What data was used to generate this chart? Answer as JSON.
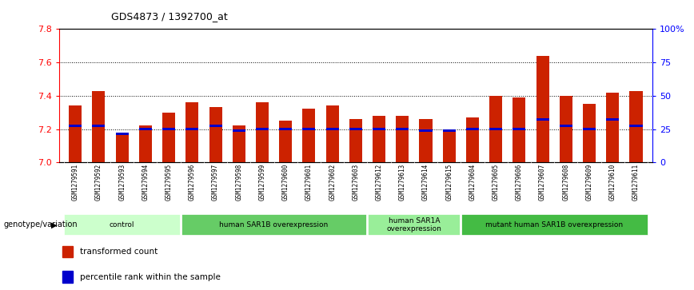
{
  "title": "GDS4873 / 1392700_at",
  "samples": [
    "GSM1279591",
    "GSM1279592",
    "GSM1279593",
    "GSM1279594",
    "GSM1279595",
    "GSM1279596",
    "GSM1279597",
    "GSM1279598",
    "GSM1279599",
    "GSM1279600",
    "GSM1279601",
    "GSM1279602",
    "GSM1279603",
    "GSM1279612",
    "GSM1279613",
    "GSM1279614",
    "GSM1279615",
    "GSM1279604",
    "GSM1279605",
    "GSM1279606",
    "GSM1279607",
    "GSM1279608",
    "GSM1279609",
    "GSM1279610",
    "GSM1279611"
  ],
  "red_values_all": [
    7.34,
    7.43,
    7.18,
    7.22,
    7.3,
    7.36,
    7.33,
    7.22,
    7.36,
    7.25,
    7.32,
    7.34,
    7.26,
    7.28,
    7.28,
    7.26,
    7.2,
    7.27,
    7.4,
    7.39,
    7.64,
    7.4,
    7.35,
    7.42,
    7.43
  ],
  "blue_values": [
    7.22,
    7.22,
    7.17,
    7.2,
    7.2,
    7.2,
    7.22,
    7.19,
    7.2,
    7.2,
    7.2,
    7.2,
    7.2,
    7.2,
    7.2,
    7.19,
    7.19,
    7.2,
    7.2,
    7.2,
    7.26,
    7.22,
    7.2,
    7.26,
    7.22
  ],
  "groups": [
    {
      "label": "control",
      "start": 0,
      "end": 4,
      "color": "#ccffcc"
    },
    {
      "label": "human SAR1B overexpression",
      "start": 5,
      "end": 12,
      "color": "#66cc66"
    },
    {
      "label": "human SAR1A\noverexpression",
      "start": 13,
      "end": 16,
      "color": "#99ee99"
    },
    {
      "label": "mutant human SAR1B overexpression",
      "start": 17,
      "end": 24,
      "color": "#44bb44"
    }
  ],
  "ylim_left": [
    7.0,
    7.8
  ],
  "yticks_left": [
    7.0,
    7.2,
    7.4,
    7.6,
    7.8
  ],
  "yticks_right": [
    0,
    25,
    50,
    75,
    100
  ],
  "yticklabels_right": [
    "0",
    "25",
    "50",
    "75",
    "100%"
  ],
  "bar_color": "#cc2200",
  "blue_color": "#0000cc",
  "bar_width": 0.55,
  "legend_items": [
    {
      "label": "transformed count",
      "color": "#cc2200"
    },
    {
      "label": "percentile rank within the sample",
      "color": "#0000cc"
    }
  ],
  "genotype_label": "genotype/variation",
  "grid_lines": [
    7.2,
    7.4,
    7.6
  ],
  "bg_color": "#ffffff"
}
